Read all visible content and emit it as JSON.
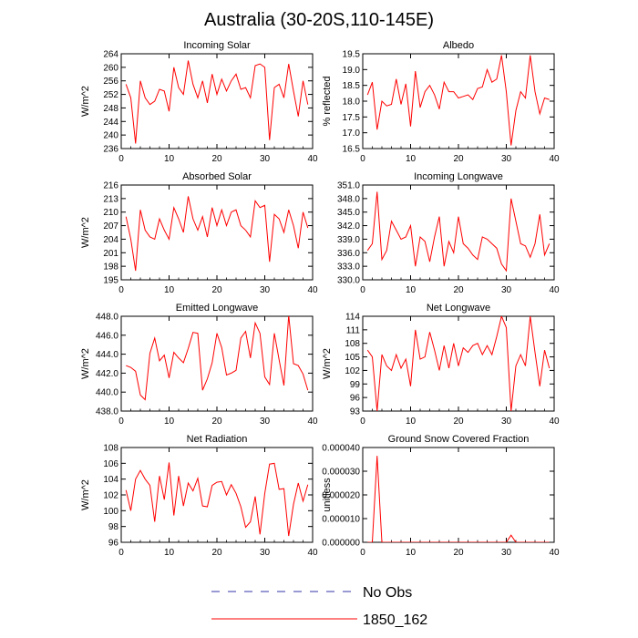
{
  "figure": {
    "title": "Australia (30-20S,110-145E)"
  },
  "legend": {
    "entries": [
      {
        "label": "No Obs",
        "style": "dashed",
        "color": "#3333aa"
      },
      {
        "label": "1850_162",
        "style": "solid",
        "color": "#ff0000"
      }
    ]
  },
  "line_color": "#ff0000",
  "chart_data": [
    {
      "type": "line",
      "title": "Incoming Solar",
      "xlabel": "",
      "ylabel": "W/m^2",
      "xlim": [
        0,
        40
      ],
      "ylim": [
        236,
        264
      ],
      "xticks": [
        0,
        10,
        20,
        30,
        40
      ],
      "yticks": [
        236,
        240,
        244,
        248,
        252,
        256,
        260,
        264
      ],
      "yticklabels": [
        "236",
        "240",
        "244",
        "248",
        "252",
        "256",
        "260",
        "264"
      ],
      "x": [
        1,
        2,
        3,
        4,
        5,
        6,
        7,
        8,
        9,
        10,
        11,
        12,
        13,
        14,
        15,
        16,
        17,
        18,
        19,
        20,
        21,
        22,
        23,
        24,
        25,
        26,
        27,
        28,
        29,
        30,
        31,
        32,
        33,
        34,
        35,
        36,
        37,
        38,
        39
      ],
      "series": [
        {
          "values": [
            255,
            251,
            237.5,
            256,
            251,
            249,
            250,
            253.5,
            253,
            247,
            260,
            254,
            252,
            262,
            255,
            251,
            256,
            249.5,
            258,
            252,
            256.5,
            253,
            256,
            258,
            253.5,
            254,
            251,
            260.5,
            261,
            260,
            238.5,
            254,
            255,
            251,
            261,
            253,
            245.5,
            256,
            249
          ]
        }
      ]
    },
    {
      "type": "line",
      "title": "Albedo",
      "xlabel": "",
      "ylabel": "% reflected",
      "xlim": [
        0,
        40
      ],
      "ylim": [
        16.5,
        19.5
      ],
      "xticks": [
        0,
        10,
        20,
        30,
        40
      ],
      "yticks": [
        16.5,
        17.0,
        17.5,
        18.0,
        18.5,
        19.0,
        19.5
      ],
      "yticklabels": [
        "16.5",
        "17.0",
        "17.5",
        "18.0",
        "18.5",
        "19.0",
        "19.5"
      ],
      "x": [
        1,
        2,
        3,
        4,
        5,
        6,
        7,
        8,
        9,
        10,
        11,
        12,
        13,
        14,
        15,
        16,
        17,
        18,
        19,
        20,
        21,
        22,
        23,
        24,
        25,
        26,
        27,
        28,
        29,
        30,
        31,
        32,
        33,
        34,
        35,
        36,
        37,
        38,
        39
      ],
      "series": [
        {
          "values": [
            18.2,
            18.6,
            17.1,
            18.0,
            17.85,
            17.9,
            18.7,
            17.9,
            18.55,
            17.2,
            18.95,
            17.8,
            18.3,
            18.5,
            18.2,
            17.75,
            18.6,
            18.3,
            18.3,
            18.1,
            18.15,
            18.2,
            18.05,
            18.4,
            18.45,
            19.0,
            18.6,
            18.7,
            19.45,
            18.3,
            16.6,
            17.7,
            18.3,
            18.1,
            19.45,
            18.3,
            17.6,
            18.1,
            18.05
          ]
        }
      ]
    },
    {
      "type": "line",
      "title": "Absorbed Solar",
      "xlabel": "",
      "ylabel": "W/m^2",
      "xlim": [
        0,
        40
      ],
      "ylim": [
        195,
        216
      ],
      "xticks": [
        0,
        10,
        20,
        30,
        40
      ],
      "yticks": [
        195,
        198,
        201,
        204,
        207,
        210,
        213,
        216
      ],
      "yticklabels": [
        "195",
        "198",
        "201",
        "204",
        "207",
        "210",
        "213",
        "216"
      ],
      "x": [
        1,
        2,
        3,
        4,
        5,
        6,
        7,
        8,
        9,
        10,
        11,
        12,
        13,
        14,
        15,
        16,
        17,
        18,
        19,
        20,
        21,
        22,
        23,
        24,
        25,
        26,
        27,
        28,
        29,
        30,
        31,
        32,
        33,
        34,
        35,
        36,
        37,
        38,
        39
      ],
      "series": [
        {
          "values": [
            209,
            204,
            197,
            210.5,
            206,
            204.5,
            204,
            208.5,
            206,
            204,
            211,
            208.5,
            205.5,
            213.5,
            208.5,
            206,
            209,
            204.5,
            211,
            207,
            210.5,
            207,
            210,
            210.5,
            207,
            206,
            204.5,
            212.5,
            211,
            211.5,
            199,
            209.5,
            208.5,
            205.5,
            210.5,
            207,
            202,
            210,
            206.5
          ]
        }
      ]
    },
    {
      "type": "line",
      "title": "Incoming Longwave",
      "xlabel": "",
      "ylabel": "",
      "xlim": [
        0,
        40
      ],
      "ylim": [
        330.0,
        351.0
      ],
      "xticks": [
        0,
        10,
        20,
        30,
        40
      ],
      "yticks": [
        330.0,
        333.0,
        336.0,
        339.0,
        342.0,
        345.0,
        348.0,
        351.0
      ],
      "yticklabels": [
        "330.0",
        "333.0",
        "336.0",
        "339.0",
        "342.0",
        "345.0",
        "348.0",
        "351.0"
      ],
      "x": [
        1,
        2,
        3,
        4,
        5,
        6,
        7,
        8,
        9,
        10,
        11,
        12,
        13,
        14,
        15,
        16,
        17,
        18,
        19,
        20,
        21,
        22,
        23,
        24,
        25,
        26,
        27,
        28,
        29,
        30,
        31,
        32,
        33,
        34,
        35,
        36,
        37,
        38,
        39
      ],
      "series": [
        {
          "values": [
            336.5,
            338,
            349.5,
            334.5,
            336.5,
            343,
            341,
            339,
            339.5,
            342,
            333,
            339.5,
            338.5,
            334,
            339.5,
            344,
            333,
            338.5,
            336,
            344,
            338,
            337,
            335.5,
            334.5,
            339.5,
            339,
            338,
            337,
            333.5,
            332,
            348,
            343,
            338,
            337.5,
            335,
            338,
            344.5,
            335.5,
            338
          ]
        }
      ]
    },
    {
      "type": "line",
      "title": "Emitted Longwave",
      "xlabel": "",
      "ylabel": "W/m^2",
      "xlim": [
        0,
        40
      ],
      "ylim": [
        438.0,
        448.0
      ],
      "xticks": [
        0,
        10,
        20,
        30,
        40
      ],
      "yticks": [
        438.0,
        440.0,
        442.0,
        444.0,
        446.0,
        448.0
      ],
      "yticklabels": [
        "438.0",
        "440.0",
        "442.0",
        "444.0",
        "446.0",
        "448.0"
      ],
      "x": [
        1,
        2,
        3,
        4,
        5,
        6,
        7,
        8,
        9,
        10,
        11,
        12,
        13,
        14,
        15,
        16,
        17,
        18,
        19,
        20,
        21,
        22,
        23,
        24,
        25,
        26,
        27,
        28,
        29,
        30,
        31,
        32,
        33,
        34,
        35,
        36,
        37,
        38,
        39
      ],
      "series": [
        {
          "values": [
            442.8,
            442.6,
            442.2,
            439.7,
            439.2,
            444.1,
            445.7,
            443.3,
            443.9,
            441.5,
            444.2,
            443.6,
            443.1,
            444.6,
            446.3,
            446.2,
            440.2,
            441.4,
            443.1,
            446.2,
            444.7,
            441.8,
            442,
            442.3,
            445.7,
            446.4,
            443.6,
            447.3,
            446.2,
            441.6,
            440.8,
            446.2,
            443.4,
            440.7,
            448.1,
            443,
            442.8,
            441.9,
            440.2
          ]
        }
      ]
    },
    {
      "type": "line",
      "title": "Net Longwave",
      "xlabel": "",
      "ylabel": "W/m^2",
      "xlim": [
        0,
        40
      ],
      "ylim": [
        93,
        114
      ],
      "xticks": [
        0,
        10,
        20,
        30,
        40
      ],
      "yticks": [
        93,
        96,
        99,
        102,
        105,
        108,
        111,
        114
      ],
      "yticklabels": [
        "93",
        "96",
        "99",
        "102",
        "105",
        "108",
        "111",
        "114"
      ],
      "x": [
        1,
        2,
        3,
        4,
        5,
        6,
        7,
        8,
        9,
        10,
        11,
        12,
        13,
        14,
        15,
        16,
        17,
        18,
        19,
        20,
        21,
        22,
        23,
        24,
        25,
        26,
        27,
        28,
        29,
        30,
        31,
        32,
        33,
        34,
        35,
        36,
        37,
        38,
        39
      ],
      "series": [
        {
          "values": [
            106.5,
            105,
            93,
            105.5,
            103,
            102,
            105.5,
            102.5,
            104.5,
            98.5,
            111,
            104.5,
            105,
            110.5,
            106.5,
            102,
            107.5,
            102.5,
            108,
            103,
            107,
            106,
            107.5,
            108,
            105.5,
            107.5,
            105.5,
            109.5,
            114,
            111.5,
            93,
            103,
            105.5,
            103,
            114,
            106,
            98.5,
            106.5,
            102.5
          ]
        }
      ]
    },
    {
      "type": "line",
      "title": "Net Radiation",
      "xlabel": "",
      "ylabel": "W/m^2",
      "xlim": [
        0,
        40
      ],
      "ylim": [
        96,
        108
      ],
      "xticks": [
        0,
        10,
        20,
        30,
        40
      ],
      "yticks": [
        96,
        98,
        100,
        102,
        104,
        106,
        108
      ],
      "yticklabels": [
        "96",
        "98",
        "100",
        "102",
        "104",
        "106",
        "108"
      ],
      "x": [
        1,
        2,
        3,
        4,
        5,
        6,
        7,
        8,
        9,
        10,
        11,
        12,
        13,
        14,
        15,
        16,
        17,
        18,
        19,
        20,
        21,
        22,
        23,
        24,
        25,
        26,
        27,
        28,
        29,
        30,
        31,
        32,
        33,
        34,
        35,
        36,
        37,
        38,
        39
      ],
      "series": [
        {
          "values": [
            102.6,
            100,
            104,
            105.1,
            104,
            103.2,
            98.6,
            104.4,
            101.4,
            106.1,
            99.4,
            104.4,
            100.6,
            103.5,
            102.5,
            104.1,
            100.6,
            100.5,
            103.2,
            103.6,
            103.7,
            102,
            103.3,
            102.2,
            100.5,
            97.9,
            98.6,
            101.8,
            97,
            102.2,
            105.9,
            106,
            102.7,
            102.8,
            96.8,
            100.8,
            103.5,
            101.2,
            103.3
          ]
        }
      ]
    },
    {
      "type": "line",
      "title": "Ground Snow Covered Fraction",
      "xlabel": "",
      "ylabel": "unitless",
      "xlim": [
        0,
        40
      ],
      "ylim": [
        0,
        4e-05
      ],
      "xticks": [
        0,
        10,
        20,
        30,
        40
      ],
      "yticks": [
        0,
        1e-05,
        2e-05,
        3e-05,
        4e-05
      ],
      "yticklabels": [
        "0.000000",
        "0.000010",
        "0.000020",
        "0.000030",
        "0.000040"
      ],
      "x": [
        1,
        2,
        3,
        4,
        5,
        6,
        7,
        8,
        9,
        10,
        11,
        12,
        13,
        14,
        15,
        16,
        17,
        18,
        19,
        20,
        21,
        22,
        23,
        24,
        25,
        26,
        27,
        28,
        29,
        30,
        31,
        32,
        33,
        34,
        35,
        36,
        37,
        38,
        39
      ],
      "series": [
        {
          "values": [
            0,
            0,
            3.65e-05,
            0,
            0,
            0,
            0,
            0,
            0,
            0,
            0,
            0,
            0,
            0,
            0,
            0,
            0,
            0,
            0,
            0,
            0,
            0,
            0,
            0,
            0,
            0,
            0,
            0,
            0,
            0,
            3e-06,
            0,
            0,
            0,
            0,
            0,
            0,
            0,
            0
          ]
        }
      ]
    }
  ]
}
